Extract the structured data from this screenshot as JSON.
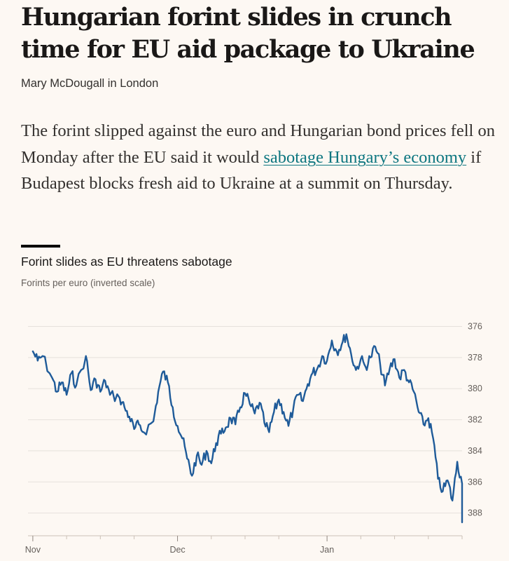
{
  "article": {
    "headline": "Hungarian forint slides in crunch time for EU aid package to Ukraine",
    "byline": "Mary McDougall in London",
    "standfirst_pre": "The forint slipped against the euro and Hungarian bond prices fell on Monday after the EU said it would ",
    "standfirst_link": "sabotage Hungary’s economy",
    "standfirst_post": " if Budapest blocks fresh aid to Ukraine at a summit on Thursday."
  },
  "colors": {
    "background": "#fdf8f3",
    "line": "#1f5b99",
    "link": "#0d7680",
    "grid": "#e6e1dc"
  },
  "chart_data": {
    "type": "line",
    "title": "Forint slides as EU threatens sabotage",
    "subtitle": "Forints per euro (inverted scale)",
    "ylabel": "Forints per euro",
    "y_inverted": true,
    "ylim": [
      375.3,
      389.1
    ],
    "yticks": [
      376,
      378,
      380,
      382,
      384,
      386,
      388
    ],
    "xlim": [
      "2023-10-31",
      "2024-01-29"
    ],
    "xticks": [
      {
        "date": "2023-11-01",
        "label": "Nov"
      },
      {
        "date": "2023-12-01",
        "label": "Dec"
      },
      {
        "date": "2024-01-01",
        "label": "Jan"
      }
    ],
    "x_minor_ticks": [
      "2023-11-08",
      "2023-11-15",
      "2023-11-22",
      "2023-12-08",
      "2023-12-15",
      "2023-12-22",
      "2024-01-08",
      "2024-01-15",
      "2024-01-22",
      "2024-01-29"
    ],
    "grid": true,
    "series": [
      {
        "points": [
          [
            "2023-11-01",
            377.6
          ],
          [
            "2023-11-02",
            378.2
          ],
          [
            "2023-11-03",
            377.9
          ],
          [
            "2023-11-05",
            379.3
          ],
          [
            "2023-11-06",
            380.2
          ],
          [
            "2023-11-07",
            379.6
          ],
          [
            "2023-11-08",
            380.4
          ],
          [
            "2023-11-09",
            379.0
          ],
          [
            "2023-11-10",
            379.8
          ],
          [
            "2023-11-12",
            377.9
          ],
          [
            "2023-11-13",
            380.1
          ],
          [
            "2023-11-14",
            379.4
          ],
          [
            "2023-11-15",
            380.2
          ],
          [
            "2023-11-16",
            379.5
          ],
          [
            "2023-11-17",
            380.4
          ],
          [
            "2023-11-19",
            380.6
          ],
          [
            "2023-11-20",
            381.2
          ],
          [
            "2023-11-21",
            381.8
          ],
          [
            "2023-11-22",
            382.6
          ],
          [
            "2023-11-23",
            382.3
          ],
          [
            "2023-11-24",
            382.8
          ],
          [
            "2023-11-26",
            382.1
          ],
          [
            "2023-11-27",
            380.2
          ],
          [
            "2023-11-28",
            378.9
          ],
          [
            "2023-11-29",
            379.6
          ],
          [
            "2023-11-30",
            381.2
          ],
          [
            "2023-12-01",
            382.4
          ],
          [
            "2023-12-02",
            383.2
          ],
          [
            "2023-12-03",
            384.5
          ],
          [
            "2023-12-04",
            385.6
          ],
          [
            "2023-12-05",
            384.3
          ],
          [
            "2023-12-06",
            384.9
          ],
          [
            "2023-12-07",
            384.0
          ],
          [
            "2023-12-08",
            384.8
          ],
          [
            "2023-12-09",
            383.5
          ],
          [
            "2023-12-10",
            382.9
          ],
          [
            "2023-12-11",
            382.5
          ],
          [
            "2023-12-12",
            381.9
          ],
          [
            "2023-12-13",
            382.3
          ],
          [
            "2023-12-14",
            381.2
          ],
          [
            "2023-12-15",
            380.3
          ],
          [
            "2023-12-16",
            381.0
          ],
          [
            "2023-12-17",
            381.6
          ],
          [
            "2023-12-18",
            380.9
          ],
          [
            "2023-12-19",
            382.2
          ],
          [
            "2023-12-20",
            382.8
          ],
          [
            "2023-12-21",
            381.5
          ],
          [
            "2023-12-22",
            380.7
          ],
          [
            "2023-12-23",
            381.5
          ],
          [
            "2023-12-24",
            382.4
          ],
          [
            "2023-12-25",
            381.3
          ],
          [
            "2023-12-26",
            380.4
          ],
          [
            "2023-12-27",
            380.8
          ],
          [
            "2023-12-28",
            379.7
          ],
          [
            "2023-12-29",
            379.0
          ],
          [
            "2023-12-30",
            378.7
          ],
          [
            "2023-12-31",
            377.9
          ],
          [
            "2024-01-01",
            378.2
          ],
          [
            "2024-01-02",
            376.9
          ],
          [
            "2024-01-03",
            377.6
          ],
          [
            "2024-01-04",
            377.2
          ],
          [
            "2024-01-05",
            376.5
          ],
          [
            "2024-01-06",
            377.8
          ],
          [
            "2024-01-07",
            378.8
          ],
          [
            "2024-01-08",
            378.1
          ],
          [
            "2024-01-09",
            378.6
          ],
          [
            "2024-01-10",
            378.0
          ],
          [
            "2024-01-11",
            377.3
          ],
          [
            "2024-01-12",
            378.4
          ],
          [
            "2024-01-13",
            379.8
          ],
          [
            "2024-01-14",
            378.7
          ],
          [
            "2024-01-15",
            378.1
          ],
          [
            "2024-01-16",
            379.3
          ],
          [
            "2024-01-17",
            378.8
          ],
          [
            "2024-01-18",
            379.6
          ],
          [
            "2024-01-19",
            380.2
          ],
          [
            "2024-01-20",
            381.5
          ],
          [
            "2024-01-21",
            382.3
          ],
          [
            "2024-01-22",
            381.9
          ],
          [
            "2024-01-23",
            383.2
          ],
          [
            "2024-01-24",
            385.8
          ],
          [
            "2024-01-25",
            386.6
          ],
          [
            "2024-01-26",
            385.9
          ],
          [
            "2024-01-27",
            387.2
          ],
          [
            "2024-01-28",
            384.7
          ],
          [
            "2024-01-29",
            386.1
          ],
          [
            "2024-01-29",
            388.6
          ]
        ]
      }
    ]
  }
}
